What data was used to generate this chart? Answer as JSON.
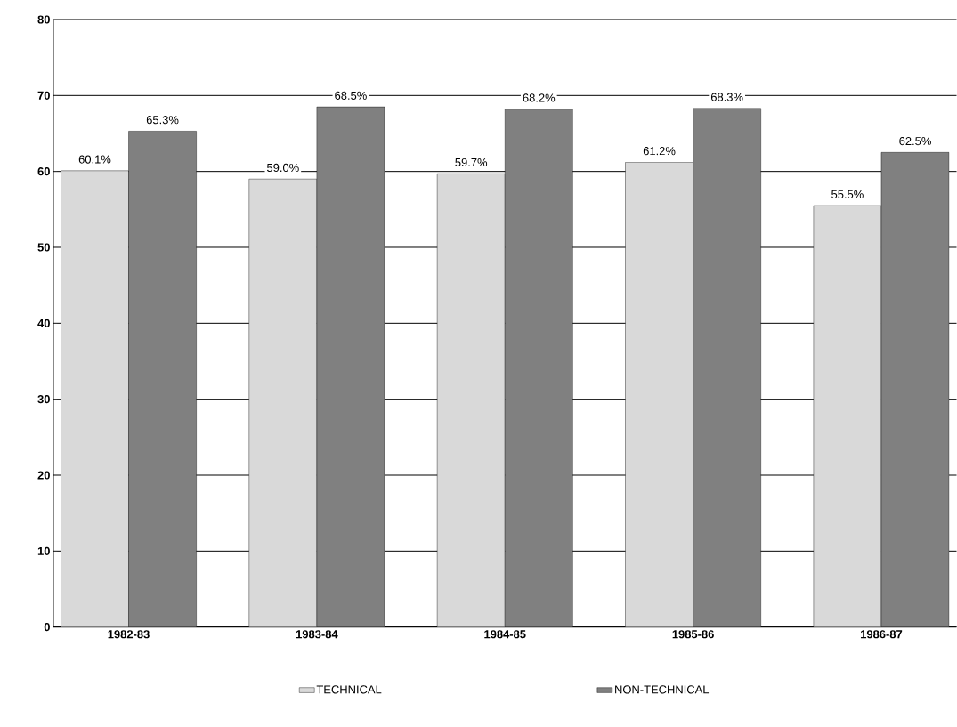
{
  "chart_data": {
    "type": "bar",
    "categories": [
      "1982-83",
      "1983-84",
      "1984-85",
      "1985-86",
      "1986-87"
    ],
    "series": [
      {
        "name": "TECHNICAL",
        "color": "#d9d9d9",
        "values": [
          60.1,
          59.0,
          59.7,
          61.2,
          55.5
        ],
        "value_labels": [
          "60.1%",
          "59.0%",
          "59.7%",
          "61.2%",
          "55.5%"
        ]
      },
      {
        "name": "NON-TECHNICAL",
        "color": "#808080",
        "values": [
          65.3,
          68.5,
          68.2,
          68.3,
          62.5
        ],
        "value_labels": [
          "65.3%",
          "68.5%",
          "68.2%",
          "68.3%",
          "62.5%"
        ]
      }
    ],
    "ylim": [
      0,
      80
    ],
    "yticks": [
      0,
      10,
      20,
      30,
      40,
      50,
      60,
      70,
      80
    ],
    "grid": "y",
    "legend": "bottom"
  }
}
